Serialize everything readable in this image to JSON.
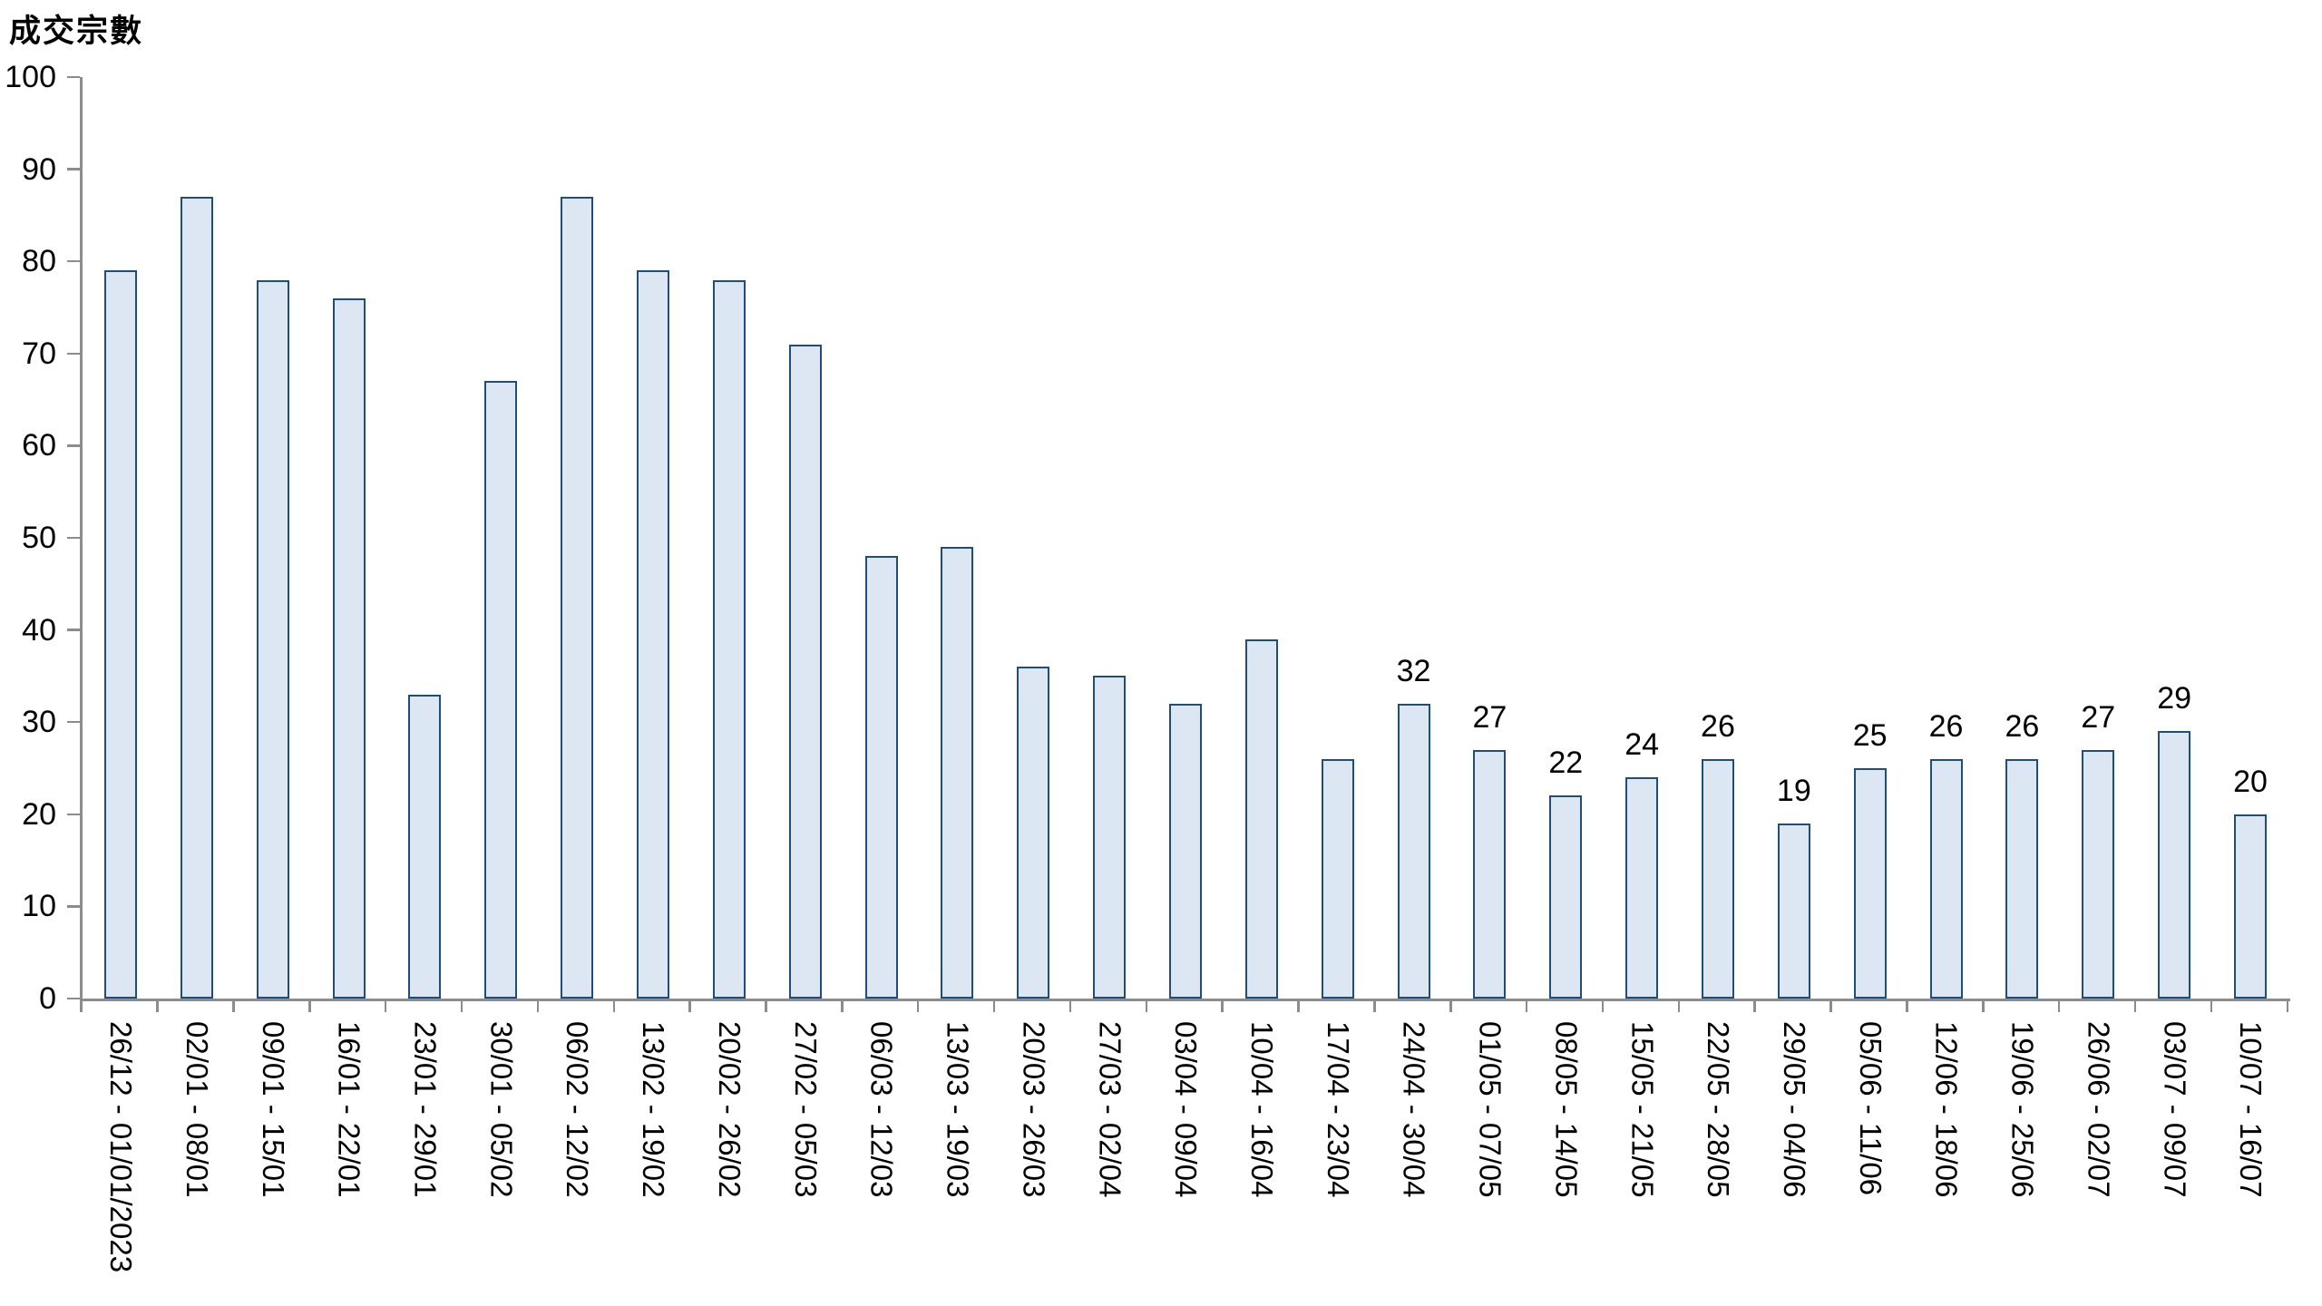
{
  "chart_data": {
    "type": "bar",
    "title": "成交宗數",
    "ylabel": "成交宗數",
    "xlabel": "",
    "ylim": [
      0,
      100
    ],
    "yticks": [
      0,
      10,
      20,
      30,
      40,
      50,
      60,
      70,
      80,
      90,
      100
    ],
    "grid": false,
    "legend": null,
    "categories": [
      "26/12 - 01/01/2023",
      "02/01 - 08/01",
      "09/01 - 15/01",
      "16/01 - 22/01",
      "23/01 - 29/01",
      "30/01 - 05/02",
      "06/02 - 12/02",
      "13/02 - 19/02",
      "20/02 - 26/02",
      "27/02 - 05/03",
      "06/03 - 12/03",
      "13/03 - 19/03",
      "20/03 - 26/03",
      "27/03 - 02/04",
      "03/04 - 09/04",
      "10/04 - 16/04",
      "17/04 - 23/04",
      "24/04 - 30/04",
      "01/05 - 07/05",
      "08/05 - 14/05",
      "15/05 - 21/05",
      "22/05 - 28/05",
      "29/05 - 04/06",
      "05/06 - 11/06",
      "12/06 - 18/06",
      "19/06 - 25/06",
      "26/06 - 02/07",
      "03/07 - 09/07",
      "10/07 - 16/07"
    ],
    "values": [
      79,
      87,
      78,
      76,
      33,
      67,
      87,
      79,
      78,
      71,
      48,
      49,
      36,
      35,
      32,
      39,
      26,
      32,
      27,
      22,
      24,
      26,
      19,
      25,
      26,
      26,
      27,
      29,
      20
    ],
    "data_labels": [
      null,
      null,
      null,
      null,
      null,
      null,
      null,
      null,
      null,
      null,
      null,
      null,
      null,
      null,
      null,
      null,
      null,
      "32",
      "27",
      "22",
      "24",
      "26",
      "19",
      "25",
      "26",
      "26",
      "27",
      "29",
      "20"
    ],
    "colors": {
      "bar_fill": "#dce7f3",
      "bar_border": "#1f4e79",
      "axis": "#8c8c8c",
      "text": "#000000"
    }
  }
}
